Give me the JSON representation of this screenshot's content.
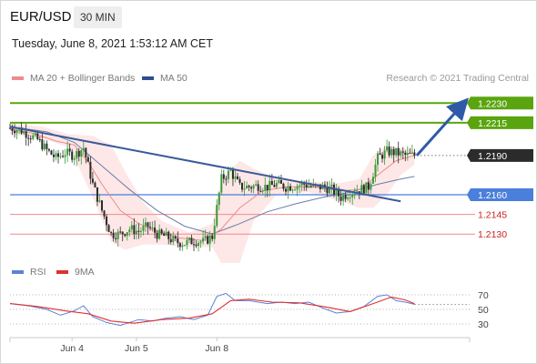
{
  "header": {
    "symbol": "EUR/USD",
    "timeframe": "30 MIN",
    "datetime": "Tuesday, June 8, 2021 1:53:12 AM CET"
  },
  "legend": {
    "ma20": "MA 20 + Bollinger Bands",
    "ma50": "MA 50",
    "credit": "Research © 2021 Trading Central",
    "rsi": "RSI",
    "ma9": "9MA"
  },
  "colors": {
    "green": "#5aa50f",
    "blue": "#4a7fdc",
    "red": "#cc2222",
    "pink_line": "#f08a8a",
    "navy": "#2e4f8f",
    "current": "#2b2b2b",
    "candle": "#2a2a2a",
    "candle_up": "#3a9a3a",
    "band_fill": "#fde3e3",
    "rsi_line": "#5a82d8",
    "rsi_ma": "#e03030"
  },
  "chart_data": [
    {
      "type": "line",
      "title": "",
      "x_labels": [
        "Jun 4",
        "Jun 5",
        "Jun 8"
      ],
      "ylim": [
        1.211,
        1.2242
      ],
      "levels": [
        {
          "value": 1.223,
          "label": "1.2230",
          "kind": "resistance"
        },
        {
          "value": 1.2215,
          "label": "1.2215",
          "kind": "resistance"
        },
        {
          "value": 1.219,
          "label": "1.2190",
          "kind": "current"
        },
        {
          "value": 1.216,
          "label": "1.2160",
          "kind": "pivot"
        },
        {
          "value": 1.2145,
          "label": "1.2145",
          "kind": "support"
        },
        {
          "value": 1.213,
          "label": "1.2130",
          "kind": "support"
        }
      ],
      "price_series": [
        {
          "x": 0,
          "y": 1.2211
        },
        {
          "x": 4,
          "y": 1.221
        },
        {
          "x": 8,
          "y": 1.2206
        },
        {
          "x": 12,
          "y": 1.2202
        },
        {
          "x": 16,
          "y": 1.2194
        },
        {
          "x": 20,
          "y": 1.2188
        },
        {
          "x": 24,
          "y": 1.2192
        },
        {
          "x": 28,
          "y": 1.219
        },
        {
          "x": 32,
          "y": 1.2196
        },
        {
          "x": 36,
          "y": 1.2168
        },
        {
          "x": 40,
          "y": 1.2148
        },
        {
          "x": 44,
          "y": 1.213
        },
        {
          "x": 48,
          "y": 1.213
        },
        {
          "x": 52,
          "y": 1.2134
        },
        {
          "x": 56,
          "y": 1.2132
        },
        {
          "x": 60,
          "y": 1.2136
        },
        {
          "x": 64,
          "y": 1.213
        },
        {
          "x": 68,
          "y": 1.2128
        },
        {
          "x": 72,
          "y": 1.2124
        },
        {
          "x": 76,
          "y": 1.2123
        },
        {
          "x": 80,
          "y": 1.2125
        },
        {
          "x": 84,
          "y": 1.2124
        },
        {
          "x": 88,
          "y": 1.2128
        },
        {
          "x": 92,
          "y": 1.2172
        },
        {
          "x": 96,
          "y": 1.2178
        },
        {
          "x": 100,
          "y": 1.2166
        },
        {
          "x": 104,
          "y": 1.2166
        },
        {
          "x": 108,
          "y": 1.2167
        },
        {
          "x": 112,
          "y": 1.2166
        },
        {
          "x": 116,
          "y": 1.2168
        },
        {
          "x": 120,
          "y": 1.2166
        },
        {
          "x": 124,
          "y": 1.2167
        },
        {
          "x": 128,
          "y": 1.2168
        },
        {
          "x": 132,
          "y": 1.2166
        },
        {
          "x": 136,
          "y": 1.2166
        },
        {
          "x": 140,
          "y": 1.2164
        },
        {
          "x": 144,
          "y": 1.2158
        },
        {
          "x": 148,
          "y": 1.2162
        },
        {
          "x": 152,
          "y": 1.2164
        },
        {
          "x": 156,
          "y": 1.2166
        },
        {
          "x": 160,
          "y": 1.2188
        },
        {
          "x": 164,
          "y": 1.2193
        },
        {
          "x": 168,
          "y": 1.2192
        },
        {
          "x": 172,
          "y": 1.219
        },
        {
          "x": 176,
          "y": 1.219
        }
      ],
      "ma20": [
        {
          "x": 0,
          "y": 1.221
        },
        {
          "x": 10,
          "y": 1.2207
        },
        {
          "x": 20,
          "y": 1.2201
        },
        {
          "x": 28,
          "y": 1.2198
        },
        {
          "x": 34,
          "y": 1.2185
        },
        {
          "x": 40,
          "y": 1.2168
        },
        {
          "x": 48,
          "y": 1.2148
        },
        {
          "x": 56,
          "y": 1.2138
        },
        {
          "x": 64,
          "y": 1.2132
        },
        {
          "x": 74,
          "y": 1.2127
        },
        {
          "x": 84,
          "y": 1.2125
        },
        {
          "x": 92,
          "y": 1.2134
        },
        {
          "x": 100,
          "y": 1.215
        },
        {
          "x": 110,
          "y": 1.2163
        },
        {
          "x": 120,
          "y": 1.2166
        },
        {
          "x": 132,
          "y": 1.2166
        },
        {
          "x": 144,
          "y": 1.2163
        },
        {
          "x": 152,
          "y": 1.2164
        },
        {
          "x": 160,
          "y": 1.2175
        },
        {
          "x": 168,
          "y": 1.2186
        },
        {
          "x": 176,
          "y": 1.219
        }
      ],
      "ma50": [
        {
          "x": 0,
          "y": 1.2212
        },
        {
          "x": 16,
          "y": 1.2208
        },
        {
          "x": 28,
          "y": 1.22
        },
        {
          "x": 40,
          "y": 1.2182
        },
        {
          "x": 52,
          "y": 1.2164
        },
        {
          "x": 64,
          "y": 1.2148
        },
        {
          "x": 76,
          "y": 1.2136
        },
        {
          "x": 88,
          "y": 1.213
        },
        {
          "x": 100,
          "y": 1.2138
        },
        {
          "x": 112,
          "y": 1.2147
        },
        {
          "x": 124,
          "y": 1.2153
        },
        {
          "x": 136,
          "y": 1.2158
        },
        {
          "x": 148,
          "y": 1.2162
        },
        {
          "x": 160,
          "y": 1.2168
        },
        {
          "x": 170,
          "y": 1.2172
        },
        {
          "x": 176,
          "y": 1.2174
        }
      ],
      "bollinger": [
        {
          "x": 0,
          "upper": 1.2214,
          "lower": 1.2206
        },
        {
          "x": 14,
          "upper": 1.2212,
          "lower": 1.2203
        },
        {
          "x": 26,
          "upper": 1.2206,
          "lower": 1.2196
        },
        {
          "x": 36,
          "upper": 1.2205,
          "lower": 1.2158
        },
        {
          "x": 44,
          "upper": 1.2198,
          "lower": 1.2124
        },
        {
          "x": 50,
          "upper": 1.2178,
          "lower": 1.2118
        },
        {
          "x": 58,
          "upper": 1.2154,
          "lower": 1.2122
        },
        {
          "x": 66,
          "upper": 1.214,
          "lower": 1.2122
        },
        {
          "x": 78,
          "upper": 1.2131,
          "lower": 1.212
        },
        {
          "x": 88,
          "upper": 1.2138,
          "lower": 1.212
        },
        {
          "x": 92,
          "upper": 1.2172,
          "lower": 1.2108
        },
        {
          "x": 100,
          "upper": 1.2186,
          "lower": 1.2108
        },
        {
          "x": 106,
          "upper": 1.218,
          "lower": 1.214
        },
        {
          "x": 116,
          "upper": 1.2172,
          "lower": 1.216
        },
        {
          "x": 130,
          "upper": 1.217,
          "lower": 1.2162
        },
        {
          "x": 144,
          "upper": 1.2169,
          "lower": 1.2155
        },
        {
          "x": 152,
          "upper": 1.2172,
          "lower": 1.215
        },
        {
          "x": 158,
          "upper": 1.219,
          "lower": 1.215
        },
        {
          "x": 164,
          "upper": 1.2198,
          "lower": 1.216
        },
        {
          "x": 170,
          "upper": 1.2196,
          "lower": 1.2175
        },
        {
          "x": 176,
          "upper": 1.2194,
          "lower": 1.2183
        }
      ],
      "trendline": [
        {
          "x": 0,
          "y": 1.2212
        },
        {
          "x": 170,
          "y": 1.2155
        }
      ],
      "projection_arrow": [
        {
          "x": 177,
          "y": 1.219
        },
        {
          "x": 198,
          "y": 1.223
        }
      ]
    },
    {
      "type": "line",
      "title": "",
      "ylim": [
        15,
        85
      ],
      "y_ticks": [
        70,
        50,
        30
      ],
      "rsi": [
        {
          "x": 0,
          "y": 58
        },
        {
          "x": 8,
          "y": 55
        },
        {
          "x": 16,
          "y": 50
        },
        {
          "x": 22,
          "y": 42
        },
        {
          "x": 28,
          "y": 48
        },
        {
          "x": 32,
          "y": 55
        },
        {
          "x": 36,
          "y": 40
        },
        {
          "x": 42,
          "y": 32
        },
        {
          "x": 48,
          "y": 28
        },
        {
          "x": 56,
          "y": 36
        },
        {
          "x": 62,
          "y": 34
        },
        {
          "x": 68,
          "y": 38
        },
        {
          "x": 74,
          "y": 40
        },
        {
          "x": 80,
          "y": 36
        },
        {
          "x": 86,
          "y": 42
        },
        {
          "x": 90,
          "y": 68
        },
        {
          "x": 94,
          "y": 72
        },
        {
          "x": 98,
          "y": 62
        },
        {
          "x": 104,
          "y": 62
        },
        {
          "x": 112,
          "y": 58
        },
        {
          "x": 118,
          "y": 60
        },
        {
          "x": 124,
          "y": 58
        },
        {
          "x": 130,
          "y": 60
        },
        {
          "x": 136,
          "y": 52
        },
        {
          "x": 142,
          "y": 45
        },
        {
          "x": 148,
          "y": 47
        },
        {
          "x": 154,
          "y": 54
        },
        {
          "x": 160,
          "y": 68
        },
        {
          "x": 164,
          "y": 70
        },
        {
          "x": 168,
          "y": 62
        },
        {
          "x": 172,
          "y": 60
        },
        {
          "x": 176,
          "y": 57
        }
      ],
      "rsi_ma": [
        {
          "x": 0,
          "y": 58
        },
        {
          "x": 12,
          "y": 54
        },
        {
          "x": 24,
          "y": 48
        },
        {
          "x": 34,
          "y": 44
        },
        {
          "x": 44,
          "y": 34
        },
        {
          "x": 54,
          "y": 31
        },
        {
          "x": 66,
          "y": 36
        },
        {
          "x": 78,
          "y": 38
        },
        {
          "x": 88,
          "y": 44
        },
        {
          "x": 96,
          "y": 62
        },
        {
          "x": 104,
          "y": 64
        },
        {
          "x": 114,
          "y": 60
        },
        {
          "x": 126,
          "y": 59
        },
        {
          "x": 138,
          "y": 53
        },
        {
          "x": 148,
          "y": 47
        },
        {
          "x": 158,
          "y": 58
        },
        {
          "x": 166,
          "y": 67
        },
        {
          "x": 172,
          "y": 63
        },
        {
          "x": 176,
          "y": 58
        }
      ]
    }
  ]
}
